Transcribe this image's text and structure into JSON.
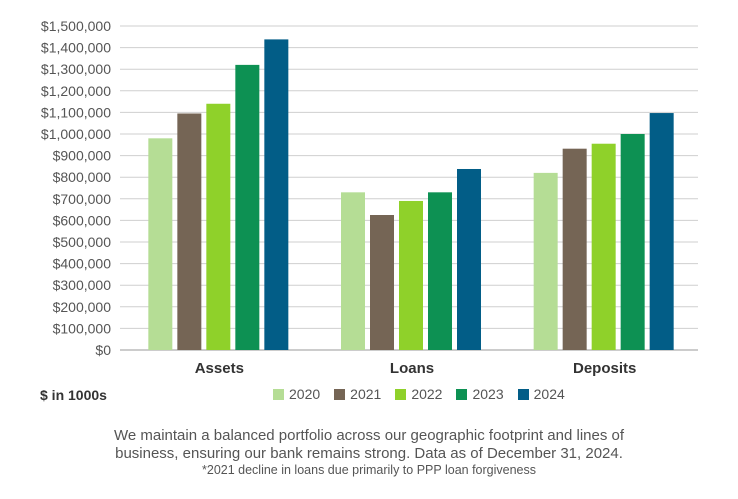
{
  "chart_data": {
    "type": "bar",
    "categories": [
      "Assets",
      "Loans",
      "Deposits"
    ],
    "series": [
      {
        "name": "2020",
        "color": "#b5dd95",
        "values": [
          980000,
          730000,
          820000
        ]
      },
      {
        "name": "2021",
        "color": "#756555",
        "values": [
          1095000,
          625000,
          932000
        ]
      },
      {
        "name": "2022",
        "color": "#8fd12a",
        "values": [
          1140000,
          690000,
          955000
        ]
      },
      {
        "name": "2023",
        "color": "#0d9153",
        "values": [
          1320000,
          730000,
          1000000
        ]
      },
      {
        "name": "2024",
        "color": "#025d87",
        "values": [
          1438000,
          838000,
          1097000
        ]
      }
    ],
    "ylim": [
      0,
      1500000
    ],
    "yticks": [
      0,
      100000,
      200000,
      300000,
      400000,
      500000,
      600000,
      700000,
      800000,
      900000,
      1000000,
      1100000,
      1200000,
      1300000,
      1400000,
      1500000
    ],
    "ytick_labels": [
      "$0",
      "$100,000",
      "$200,000",
      "$300,000",
      "$400,000",
      "$500,000",
      "$600,000",
      "$700,000",
      "$800,000",
      "$900,000",
      "$1,000,000",
      "$1,100,000",
      "$1,200,000",
      "$1,300,000",
      "$1,400,000",
      "$1,500,000"
    ],
    "grid": true,
    "legend_placement": "bottom",
    "unit_label": "$ in 1000s"
  },
  "caption": {
    "line1": "We maintain a balanced portfolio across our geographic footprint and lines of",
    "line2": "business, ensuring our bank remains strong. Data as of December 31, 2024.",
    "footnote": "*2021 decline in loans due primarily to PPP loan forgiveness"
  }
}
